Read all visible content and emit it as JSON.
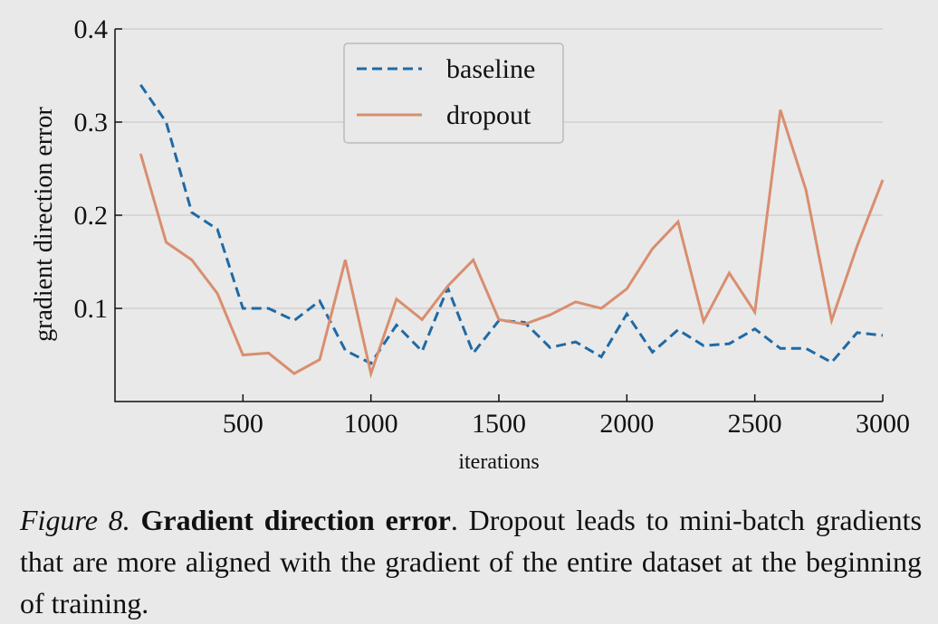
{
  "chart_data": {
    "type": "line",
    "x": [
      100,
      200,
      300,
      400,
      500,
      600,
      700,
      800,
      900,
      1000,
      1100,
      1200,
      1300,
      1400,
      1500,
      1600,
      1700,
      1800,
      1900,
      2000,
      2100,
      2200,
      2300,
      2400,
      2500,
      2600,
      2700,
      2800,
      2900,
      3000
    ],
    "series": [
      {
        "name": "baseline",
        "color": "#1f6aa5",
        "dashed": true,
        "values": [
          0.34,
          0.3,
          0.203,
          0.185,
          0.1,
          0.1,
          0.087,
          0.108,
          0.055,
          0.041,
          0.082,
          0.054,
          0.122,
          0.052,
          0.087,
          0.085,
          0.058,
          0.064,
          0.048,
          0.094,
          0.053,
          0.077,
          0.06,
          0.062,
          0.078,
          0.057,
          0.057,
          0.042,
          0.074,
          0.071
        ]
      },
      {
        "name": "dropout",
        "color": "#d98e6f",
        "dashed": false,
        "values": [
          0.266,
          0.171,
          0.152,
          0.116,
          0.05,
          0.052,
          0.03,
          0.045,
          0.152,
          0.03,
          0.11,
          0.088,
          0.124,
          0.152,
          0.088,
          0.083,
          0.093,
          0.107,
          0.1,
          0.121,
          0.164,
          0.193,
          0.086,
          0.138,
          0.096,
          0.313,
          0.227,
          0.087,
          0.167,
          0.238
        ]
      }
    ],
    "xlabel": "iterations",
    "ylabel": "gradient direction error",
    "xlim": [
      0,
      3000
    ],
    "ylim": [
      0,
      0.4
    ],
    "xticks": [
      500,
      1000,
      1500,
      2000,
      2500,
      3000
    ],
    "yticks": [
      0.1,
      0.2,
      0.3,
      0.4
    ],
    "grid": true,
    "legend": "upper center"
  },
  "caption": {
    "label": "Figure 8.",
    "title": "Gradient direction error",
    "text": ". Dropout leads to mini-batch gradients that are more aligned with the gradient of the entire dataset at the beginning of training."
  }
}
